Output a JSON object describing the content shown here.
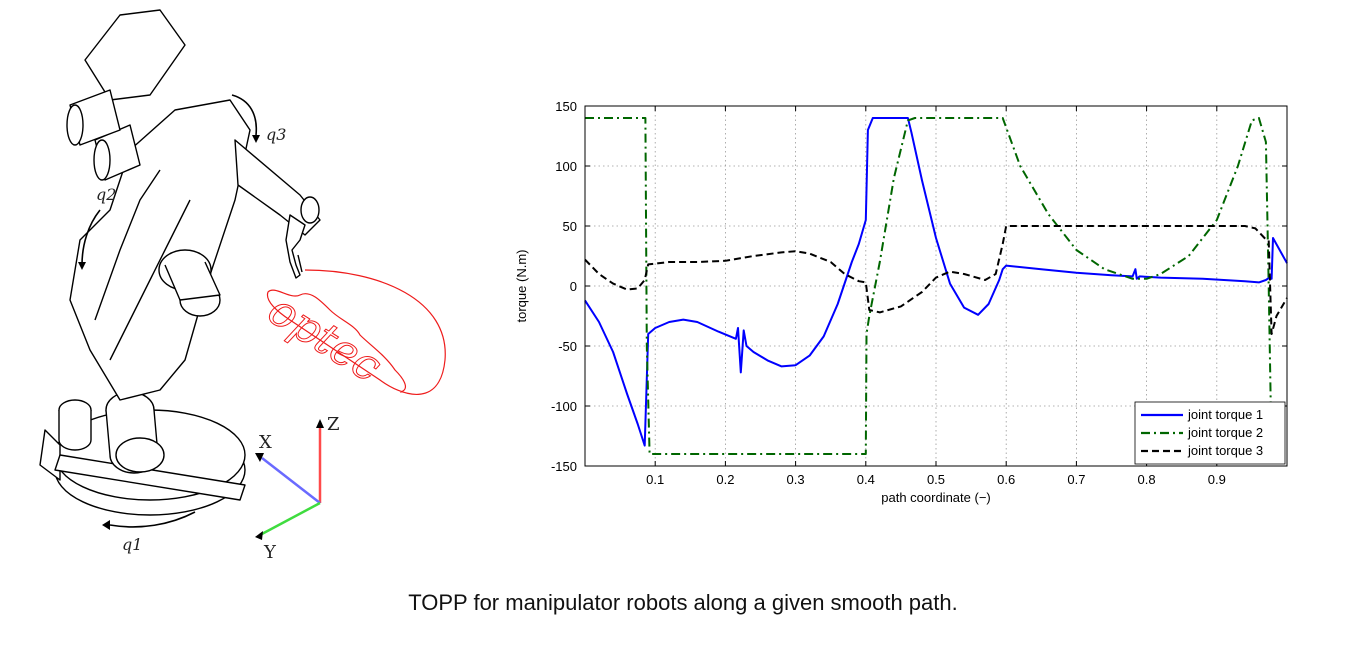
{
  "figure": {
    "caption": "TOPP for manipulator robots along a given smooth path.",
    "robot": {
      "joint_labels": [
        "q1",
        "q2",
        "q3"
      ],
      "frame_axes": [
        "X",
        "Y",
        "Z"
      ],
      "drawn_text": "optec",
      "drawn_text_color": "#ee1c1c"
    }
  },
  "chart_data": {
    "type": "line",
    "xlabel": "path coordinate (−)",
    "ylabel": "torque (N.m)",
    "xlim": [
      0,
      1
    ],
    "ylim": [
      -150,
      150
    ],
    "xticks": [
      0.1,
      0.2,
      0.3,
      0.4,
      0.5,
      0.6,
      0.7,
      0.8,
      0.9
    ],
    "yticks": [
      -150,
      -100,
      -50,
      0,
      50,
      100,
      150
    ],
    "grid": true,
    "legend_position": "bottom-right",
    "series": [
      {
        "name": "joint torque 1",
        "color": "#0000ff",
        "dash": "solid",
        "x": [
          0,
          0.02,
          0.04,
          0.06,
          0.075,
          0.085,
          0.09,
          0.1,
          0.12,
          0.14,
          0.16,
          0.19,
          0.215,
          0.218,
          0.222,
          0.226,
          0.23,
          0.24,
          0.26,
          0.28,
          0.3,
          0.32,
          0.34,
          0.36,
          0.38,
          0.39,
          0.4,
          0.403,
          0.41,
          0.43,
          0.45,
          0.46,
          0.465,
          0.48,
          0.5,
          0.52,
          0.54,
          0.56,
          0.575,
          0.59,
          0.595,
          0.6,
          0.65,
          0.7,
          0.75,
          0.78,
          0.784,
          0.786,
          0.79,
          0.82,
          0.88,
          0.94,
          0.96,
          0.97,
          0.975,
          0.978,
          0.98,
          1.0
        ],
        "y": [
          -12,
          -30,
          -55,
          -90,
          -115,
          -133,
          -40,
          -35,
          -30,
          -28,
          -30,
          -38,
          -44,
          -35,
          -72,
          -37,
          -50,
          -55,
          -62,
          -67,
          -66,
          -58,
          -42,
          -15,
          20,
          35,
          55,
          130,
          140,
          140,
          140,
          140,
          128,
          88,
          40,
          2,
          -18,
          -24,
          -15,
          5,
          14,
          17,
          14,
          11,
          9,
          8,
          14,
          6,
          8,
          7,
          6,
          4,
          3,
          5,
          7,
          6,
          40,
          19
        ]
      },
      {
        "name": "joint torque 2",
        "color": "#006600",
        "dash": "dashdot",
        "x": [
          0,
          0.086,
          0.088,
          0.092,
          0.2,
          0.3,
          0.4,
          0.401,
          0.405,
          0.42,
          0.44,
          0.46,
          0.47,
          0.5,
          0.55,
          0.595,
          0.62,
          0.66,
          0.7,
          0.74,
          0.78,
          0.8,
          0.82,
          0.86,
          0.9,
          0.93,
          0.95,
          0.96,
          0.97,
          0.974,
          0.978,
          1.0
        ],
        "y": [
          140,
          140,
          -50,
          -140,
          -140,
          -140,
          -140,
          -40,
          -25,
          20,
          90,
          138,
          140,
          140,
          140,
          140,
          100,
          60,
          30,
          14,
          6,
          6,
          10,
          25,
          55,
          100,
          138,
          140,
          120,
          0,
          -140,
          -140
        ]
      },
      {
        "name": "joint torque 3",
        "color": "#000000",
        "dash": "dashed",
        "x": [
          0,
          0.02,
          0.04,
          0.06,
          0.075,
          0.085,
          0.09,
          0.12,
          0.16,
          0.2,
          0.24,
          0.28,
          0.3,
          0.32,
          0.35,
          0.37,
          0.39,
          0.4,
          0.405,
          0.42,
          0.45,
          0.48,
          0.5,
          0.52,
          0.54,
          0.57,
          0.585,
          0.595,
          0.6,
          0.7,
          0.8,
          0.9,
          0.94,
          0.955,
          0.968,
          0.974,
          0.978,
          0.985,
          1.0
        ],
        "y": [
          22,
          10,
          2,
          -3,
          -2,
          5,
          18,
          20,
          20,
          21,
          25,
          28,
          29,
          27,
          20,
          10,
          4,
          3,
          -20,
          -22,
          -17,
          -5,
          7,
          12,
          10,
          5,
          10,
          35,
          50,
          50,
          50,
          50,
          50,
          48,
          40,
          38,
          -40,
          -25,
          -10
        ]
      }
    ]
  }
}
